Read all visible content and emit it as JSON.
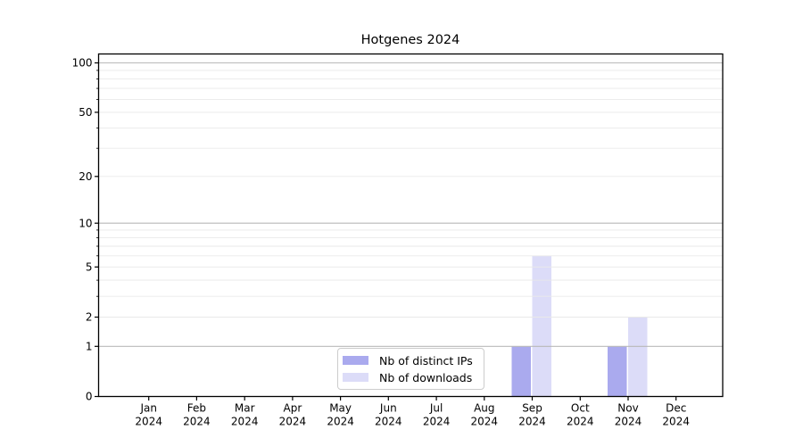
{
  "figure": {
    "background": "#ffffff"
  },
  "chart_data": {
    "type": "bar",
    "title": "Hotgenes 2024",
    "xlabel": "",
    "ylabel": "",
    "categories": [
      "Jan 2024",
      "Feb 2024",
      "Mar 2024",
      "Apr 2024",
      "May 2024",
      "Jun 2024",
      "Jul 2024",
      "Aug 2024",
      "Sep 2024",
      "Oct 2024",
      "Nov 2024",
      "Dec 2024"
    ],
    "series": [
      {
        "name": "Nb of distinct IPs",
        "color": "#aaaaee",
        "values": [
          0,
          0,
          0,
          0,
          0,
          0,
          0,
          0,
          1,
          0,
          1,
          0
        ]
      },
      {
        "name": "Nb of downloads",
        "color": "#dcdcf8",
        "values": [
          0,
          0,
          0,
          0,
          0,
          0,
          0,
          0,
          6,
          0,
          2,
          0
        ]
      }
    ],
    "yscale": "log1p",
    "ylim": [
      0,
      113
    ],
    "yticks": [
      0,
      1,
      2,
      5,
      10,
      20,
      50,
      100
    ],
    "major_gridlines": [
      1,
      10,
      100
    ],
    "minor_gridlines": [
      2,
      3,
      4,
      5,
      6,
      7,
      8,
      9,
      20,
      30,
      40,
      50,
      60,
      70,
      80,
      90
    ],
    "grid": true,
    "legend": {
      "position": "lower center",
      "border_color": "#cccccc",
      "background": "#ffffff"
    },
    "colors": {
      "axis": "#000000",
      "text": "#000000",
      "major_grid": "#b9b9b9",
      "minor_grid": "#e9e9e9"
    }
  }
}
